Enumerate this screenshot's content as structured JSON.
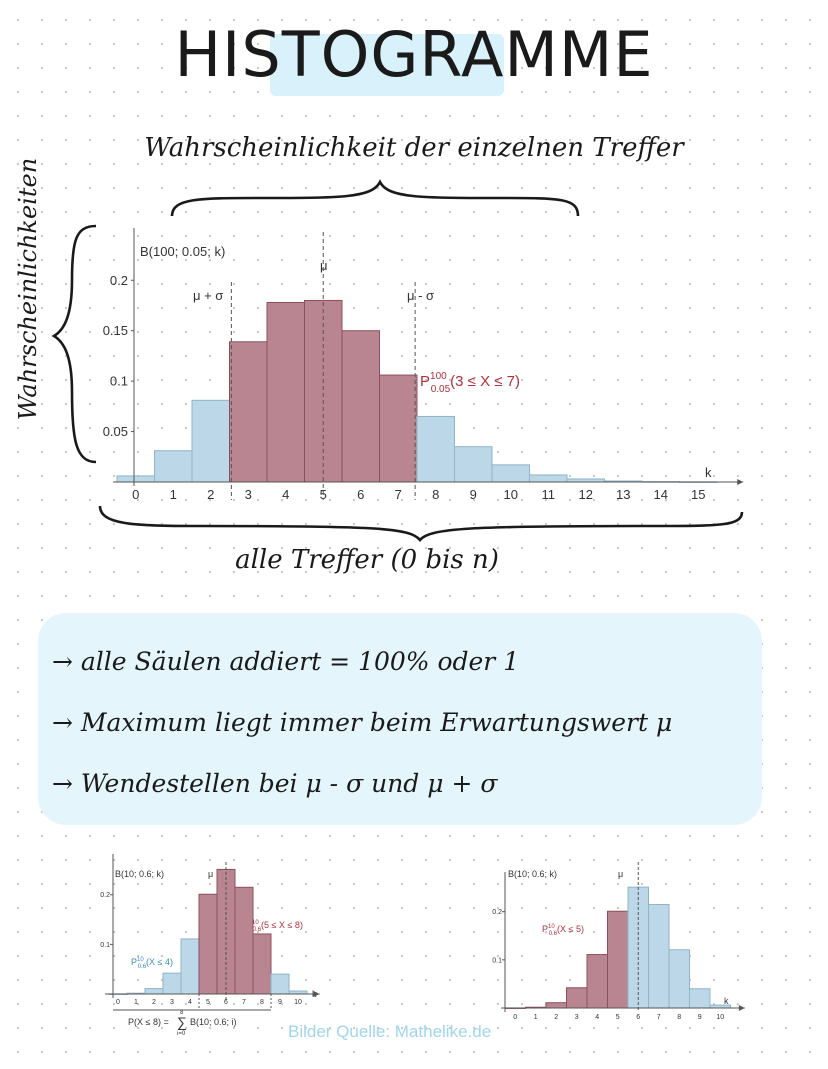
{
  "title": "HISTOGRAMME",
  "annotations": {
    "top": "Wahrscheinlichkeit der einzelnen Treffer",
    "side": "Wahrscheinlichkeiten",
    "bottom": "alle Treffer (0 bis n)"
  },
  "notes": [
    "→ alle Säulen addiert = 100% oder 1",
    "→ Maximum liegt immer beim Erwartungswert μ",
    "→ Wendestellen bei μ - σ und μ + σ"
  ],
  "credit": "Bilder Quelle: Mathelike.de",
  "colors": {
    "blue": "#bcd8e8",
    "red": "#b98590",
    "red_text": "#b0303a",
    "blue_text": "#3a8bbf"
  },
  "chart_data": [
    {
      "type": "bar",
      "title": "B(100; 0.05; k)",
      "xlabel": "k",
      "categories": [
        0,
        1,
        2,
        3,
        4,
        5,
        6,
        7,
        8,
        9,
        10,
        11,
        12,
        13,
        14,
        15
      ],
      "values": [
        0.006,
        0.031,
        0.081,
        0.139,
        0.178,
        0.18,
        0.15,
        0.106,
        0.065,
        0.035,
        0.017,
        0.007,
        0.003,
        0.001,
        0.0004,
        0.0001
      ],
      "highlight": [
        3,
        4,
        5,
        6,
        7
      ],
      "yticks": [
        "0.05",
        "0.1",
        "0.15",
        "0.2"
      ],
      "ylim": [
        0,
        0.23
      ],
      "markers": {
        "mu": "μ",
        "left": "μ + σ",
        "right": "μ - σ"
      },
      "label_P": "P",
      "label_sup": "100",
      "label_sub": "0.05",
      "label_rest": "(3 ≤ X ≤ 7)"
    },
    {
      "type": "bar",
      "title": "B(10; 0.6; k)",
      "xlabel": "k",
      "categories": [
        0,
        1,
        2,
        3,
        4,
        5,
        6,
        7,
        8,
        9,
        10
      ],
      "values": [
        0.0001,
        0.0016,
        0.011,
        0.042,
        0.111,
        0.201,
        0.251,
        0.215,
        0.121,
        0.04,
        0.006
      ],
      "highlight": [
        5,
        6,
        7,
        8
      ],
      "yticks": [
        "0.1",
        "0.2"
      ],
      "ylim": [
        0,
        0.27
      ],
      "mu": "μ",
      "label_red": {
        "P": "P",
        "sup": "10",
        "sub": "0.6",
        "rest": "(5 ≤ X ≤ 8)"
      },
      "label_blue": {
        "P": "P",
        "sup": "10",
        "sub": "0.6",
        "rest": "(X ≤ 4)"
      },
      "formula_left": "P(X ≤ 8) =",
      "formula_sum_top": "8",
      "formula_sum_bottom": "i=0",
      "formula_right": "B(10; 0.6; i)"
    },
    {
      "type": "bar",
      "title": "B(10; 0.6; k)",
      "xlabel": "k",
      "categories": [
        0,
        1,
        2,
        3,
        4,
        5,
        6,
        7,
        8,
        9,
        10
      ],
      "values": [
        0.0001,
        0.0016,
        0.011,
        0.042,
        0.111,
        0.201,
        0.251,
        0.215,
        0.121,
        0.04,
        0.006
      ],
      "highlight": [
        0,
        1,
        2,
        3,
        4,
        5
      ],
      "yticks": [
        "0.1",
        "0.2"
      ],
      "ylim": [
        0,
        0.27
      ],
      "mu": "μ",
      "label_red": {
        "P": "P",
        "sup": "10",
        "sub": "0.6",
        "rest": "(X ≤ 5)"
      }
    }
  ]
}
